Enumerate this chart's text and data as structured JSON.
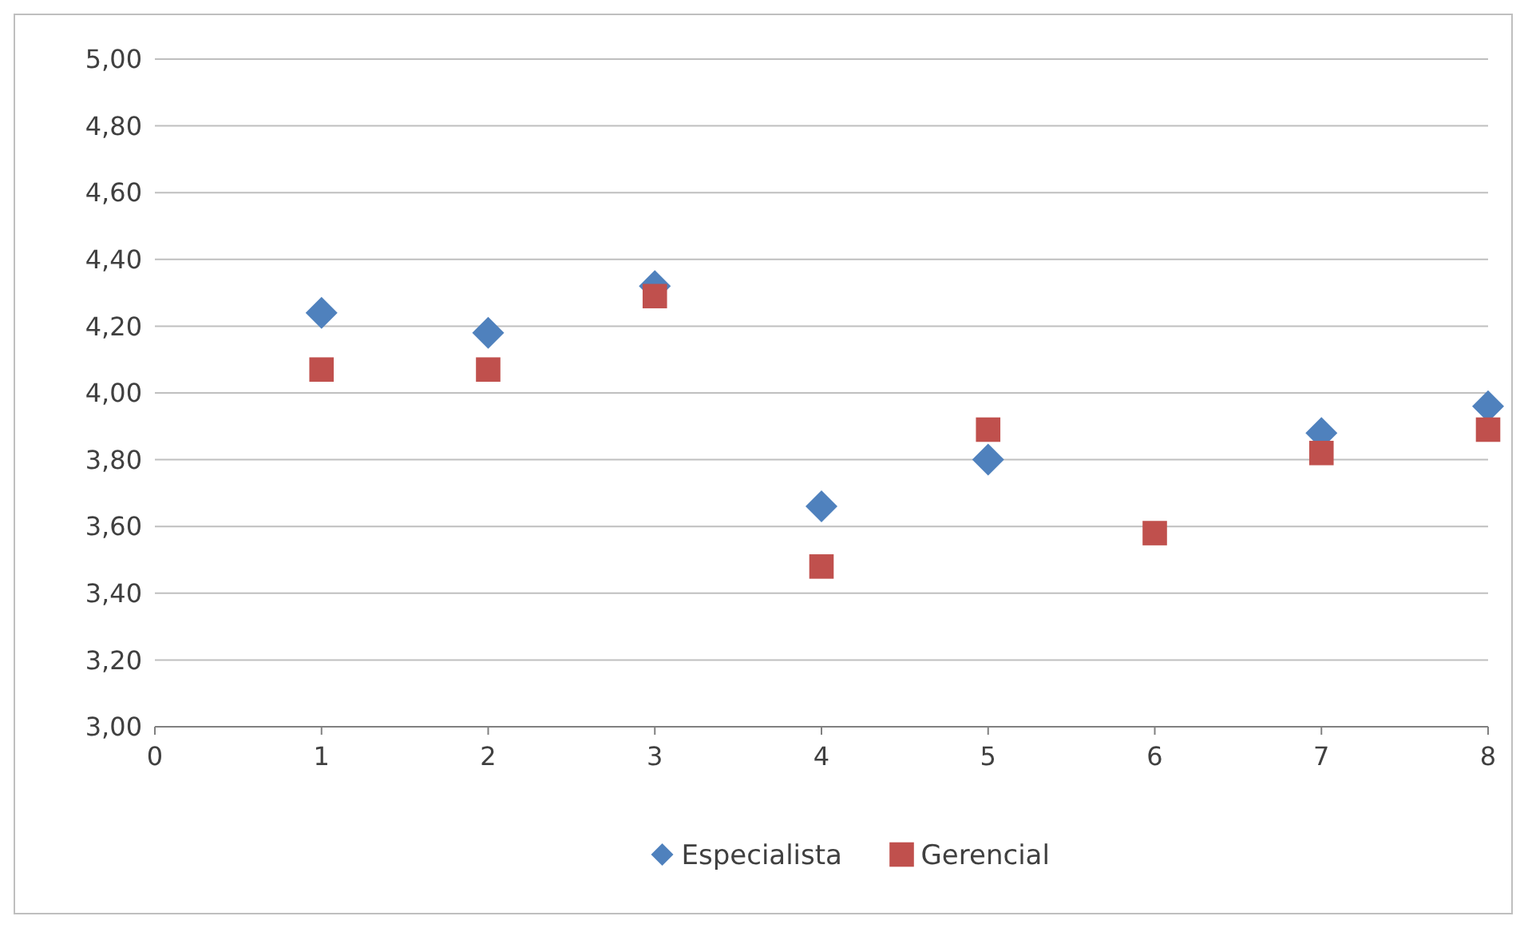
{
  "chart_data": {
    "type": "scatter",
    "x": [
      1,
      2,
      3,
      4,
      5,
      6,
      7,
      8
    ],
    "series": [
      {
        "name": "Especialista",
        "color": "#4f81bd",
        "marker": "diamond",
        "values": [
          4.24,
          4.18,
          4.32,
          3.66,
          3.8,
          null,
          3.88,
          3.96
        ]
      },
      {
        "name": "Gerencial",
        "color": "#c0504d",
        "marker": "square",
        "values": [
          4.07,
          4.07,
          4.29,
          3.48,
          3.89,
          3.58,
          3.82,
          3.89
        ]
      }
    ],
    "xlim": [
      0,
      8
    ],
    "xticks": [
      0,
      1,
      2,
      3,
      4,
      5,
      6,
      7,
      8
    ],
    "ylim": [
      3,
      5
    ],
    "yticks": [
      {
        "value": 3,
        "label": "3,00"
      },
      {
        "value": 3.2,
        "label": "3,20"
      },
      {
        "value": 3.4,
        "label": "3,40"
      },
      {
        "value": 3.6,
        "label": "3,60"
      },
      {
        "value": 3.8,
        "label": "3,80"
      },
      {
        "value": 4,
        "label": "4,00"
      },
      {
        "value": 4.2,
        "label": "4,20"
      },
      {
        "value": 4.4,
        "label": "4,40"
      },
      {
        "value": 4.6,
        "label": "4,60"
      },
      {
        "value": 4.8,
        "label": "4,80"
      },
      {
        "value": 5,
        "label": "5,00"
      }
    ],
    "grid": "y",
    "legend": "bottom"
  }
}
